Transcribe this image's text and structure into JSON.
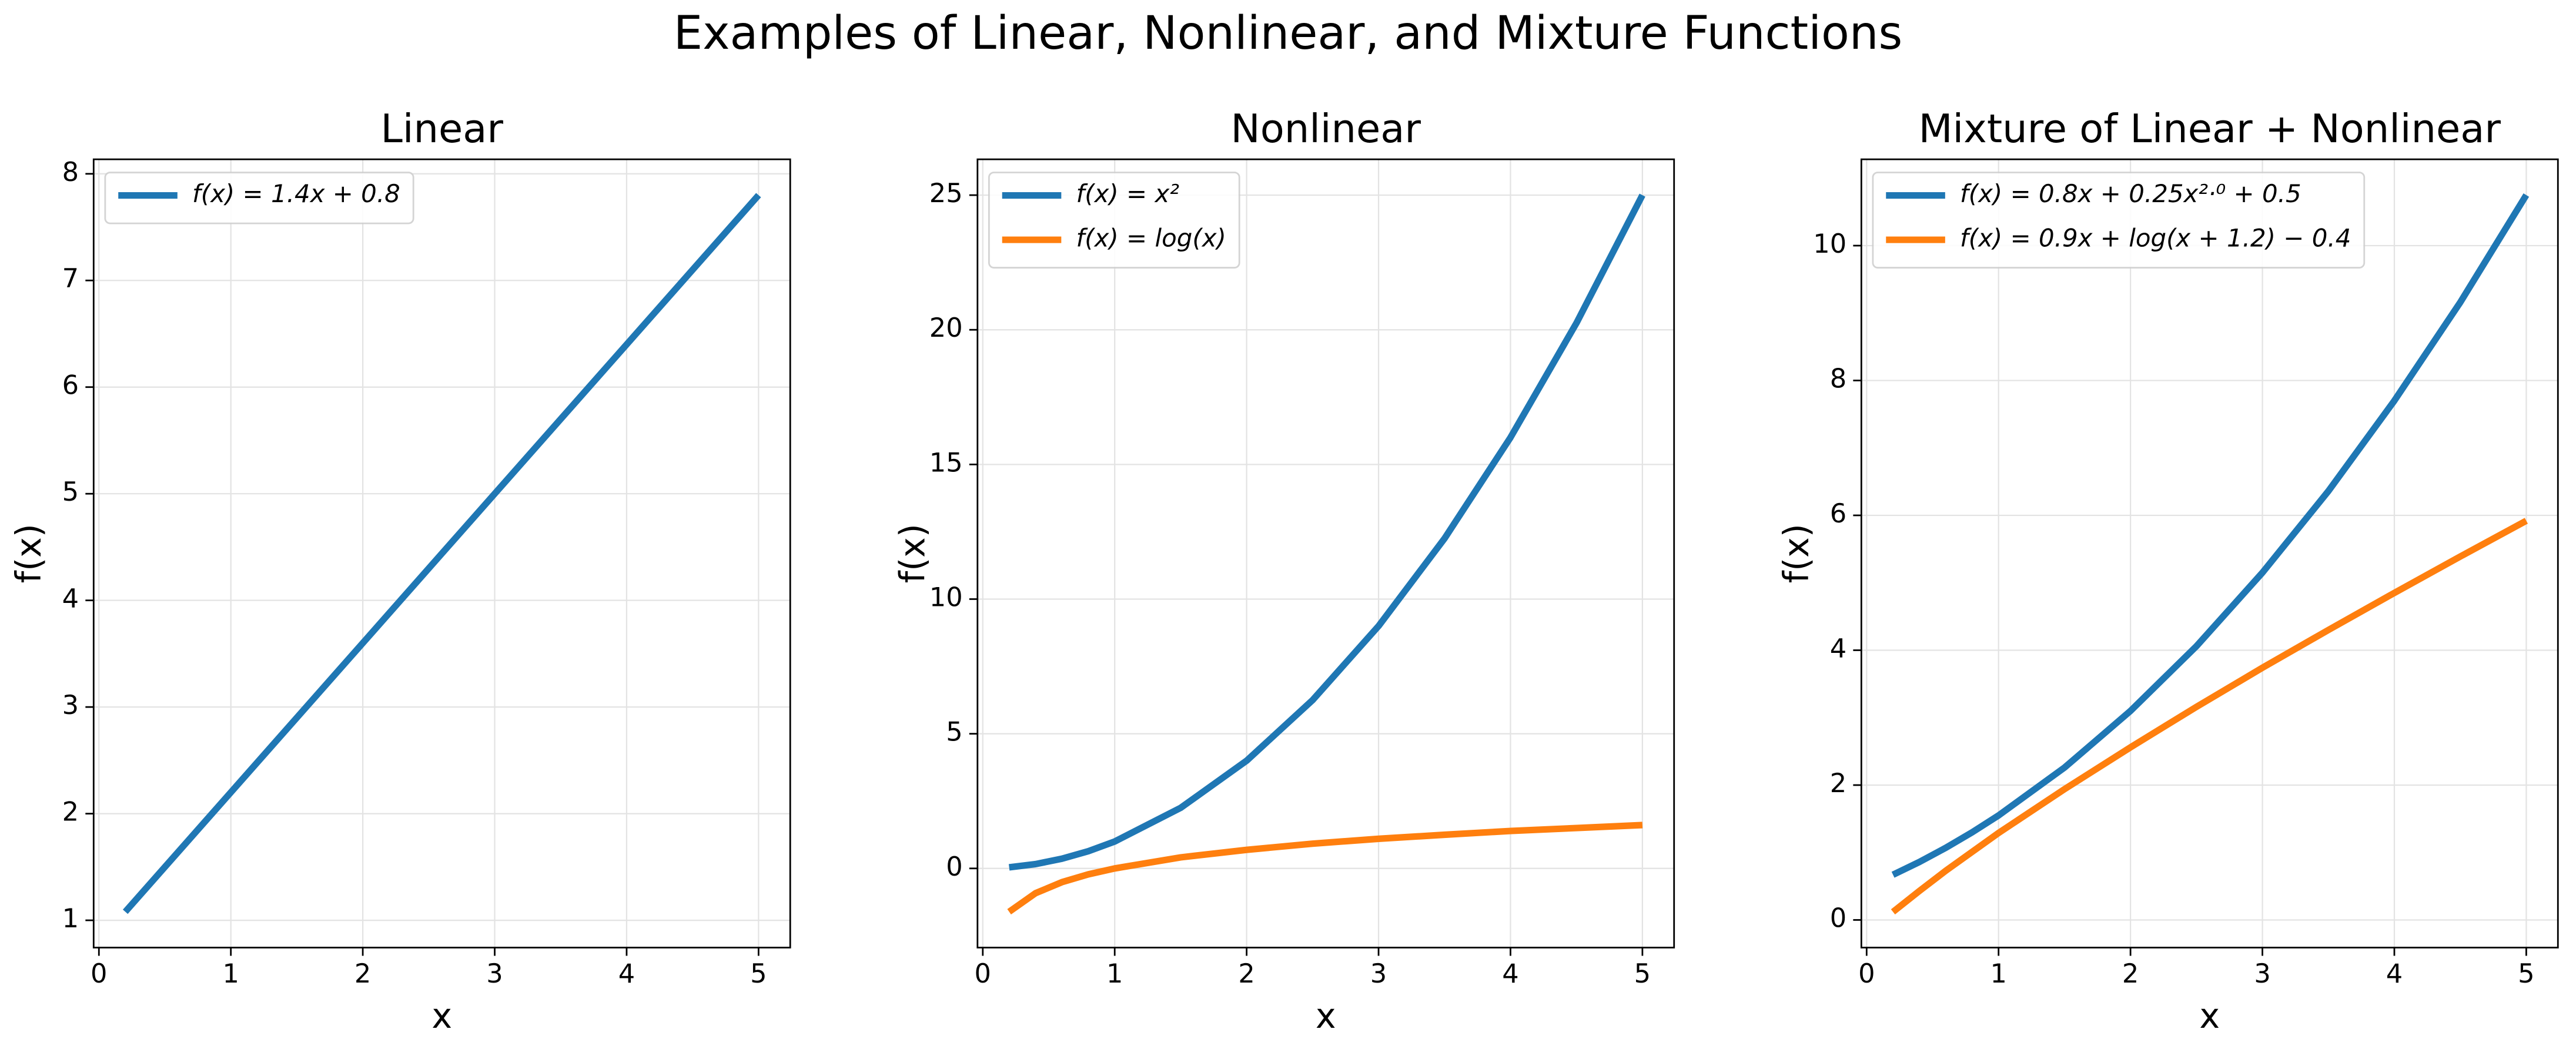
{
  "title": "Examples of Linear, Nonlinear, and Mixture Functions",
  "chart_data": [
    {
      "type": "line",
      "title": "Linear",
      "x_label": "x",
      "y_label": "f(x)",
      "x": [
        0.2,
        1,
        2,
        3,
        4,
        5
      ],
      "series": [
        {
          "name": "f(x) = 1.4x + 0.8",
          "color": "#1f77b4",
          "values": [
            1.08,
            2.2,
            3.6,
            5.0,
            6.4,
            7.8
          ]
        }
      ],
      "xlim": [
        -0.04,
        5.24
      ],
      "ylim": [
        0.744,
        8.136
      ],
      "xticks": [
        0,
        1,
        2,
        3,
        4,
        5
      ],
      "yticks": [
        1,
        2,
        3,
        4,
        5,
        6,
        7,
        8
      ],
      "grid": true,
      "legend": "upper-left"
    },
    {
      "type": "line",
      "title": "Nonlinear",
      "x_label": "x",
      "y_label": "f(x)",
      "x": [
        0.2,
        0.4,
        0.6,
        0.8,
        1,
        1.5,
        2,
        2.5,
        3,
        3.5,
        4,
        4.5,
        5
      ],
      "series": [
        {
          "name": "f(x) = x²",
          "color": "#1f77b4",
          "values": [
            0.04,
            0.16,
            0.36,
            0.64,
            1,
            2.25,
            4,
            6.25,
            9,
            12.25,
            16,
            20.25,
            25
          ]
        },
        {
          "name": "f(x) = log(x)",
          "color": "#ff7f0e",
          "values": [
            -1.61,
            -0.92,
            -0.51,
            -0.22,
            0,
            0.41,
            0.69,
            0.92,
            1.1,
            1.25,
            1.39,
            1.5,
            1.61
          ]
        }
      ],
      "xlim": [
        -0.04,
        5.24
      ],
      "ylim": [
        -2.94,
        26.33
      ],
      "xticks": [
        0,
        1,
        2,
        3,
        4,
        5
      ],
      "yticks": [
        0,
        5,
        10,
        15,
        20,
        25
      ],
      "grid": true,
      "legend": "upper-left"
    },
    {
      "type": "line",
      "title": "Mixture of Linear + Nonlinear",
      "x_label": "x",
      "y_label": "f(x)",
      "x": [
        0.2,
        0.4,
        0.6,
        0.8,
        1,
        1.5,
        2,
        2.5,
        3,
        3.5,
        4,
        4.5,
        5
      ],
      "series": [
        {
          "name": "f(x) = 0.8x + 0.25x²·⁰ + 0.5",
          "color": "#1f77b4",
          "values": [
            0.67,
            0.86,
            1.07,
            1.3,
            1.55,
            2.26,
            3.1,
            4.06,
            5.15,
            6.36,
            7.7,
            9.16,
            10.75
          ]
        },
        {
          "name": "f(x) = 0.9x + log(x + 1.2) − 0.4",
          "color": "#ff7f0e",
          "values": [
            0.12,
            0.43,
            0.73,
            1.01,
            1.29,
            1.94,
            2.56,
            3.16,
            3.74,
            4.3,
            4.85,
            5.39,
            5.92
          ]
        }
      ],
      "xlim": [
        -0.04,
        5.24
      ],
      "ylim": [
        -0.41,
        11.28
      ],
      "xticks": [
        0,
        1,
        2,
        3,
        4,
        5
      ],
      "yticks": [
        0,
        2,
        4,
        6,
        8,
        10
      ],
      "grid": true,
      "legend": "upper-left"
    }
  ]
}
